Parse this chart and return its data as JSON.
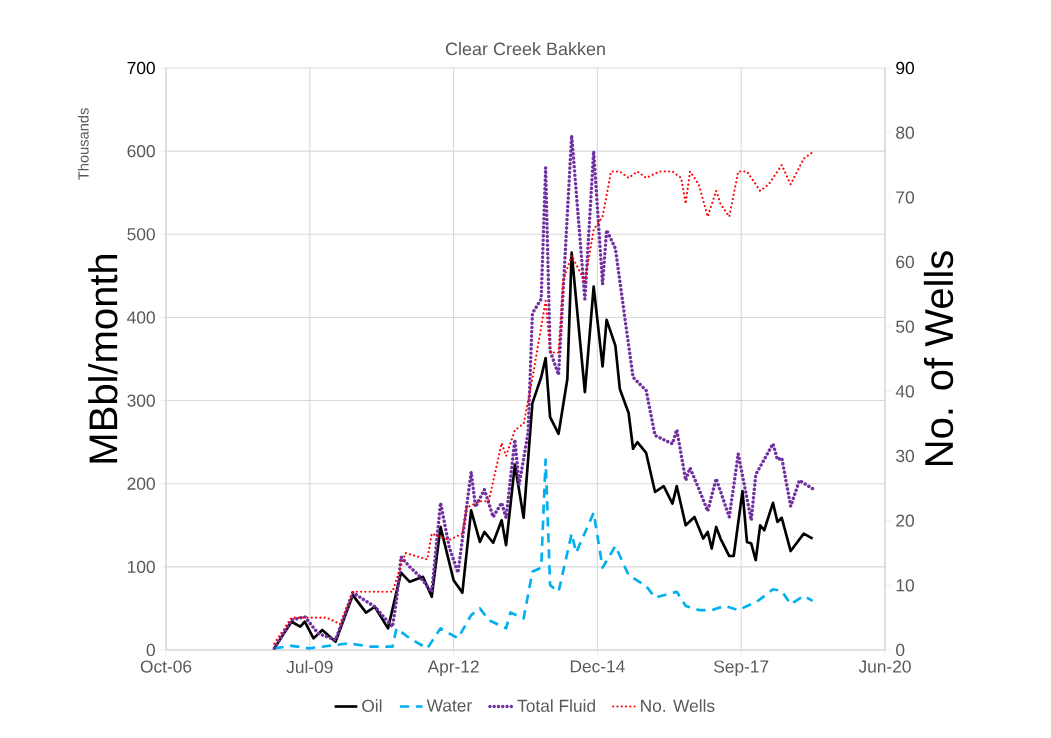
{
  "chart_data": {
    "type": "line",
    "title": "Clear Creek Bakken",
    "ylabel": "MBbl/month",
    "y2label": "No. of Wells",
    "annotations": [
      "Thousands"
    ],
    "xlim": [
      "2006-10-10",
      "2020-06-18"
    ],
    "xticks": [
      {
        "value": "2006-10-10",
        "label": "Oct-06"
      },
      {
        "value": "2009-07-06",
        "label": "Jul-09"
      },
      {
        "value": "2012-04-01",
        "label": "Apr-12"
      },
      {
        "value": "2014-12-27",
        "label": "Dec-14"
      },
      {
        "value": "2017-09-22",
        "label": "Sep-17"
      },
      {
        "value": "2020-06-18",
        "label": "Jun-20"
      }
    ],
    "ylim": [
      0,
      700
    ],
    "yticks": [
      0,
      100,
      200,
      300,
      400,
      500,
      600,
      700
    ],
    "y2lim": [
      0,
      90
    ],
    "y2ticks": [
      0,
      10,
      20,
      30,
      40,
      50,
      60,
      70,
      80,
      90
    ],
    "grid": true,
    "legend": "bottom",
    "marker": "none",
    "series": [
      {
        "name": "Oil",
        "color": "#000000",
        "line_style": "solid",
        "x": [
          "2008-11",
          "2009-03",
          "2009-05",
          "2009-06",
          "2009-08",
          "2009-10",
          "2010-01",
          "2010-05",
          "2010-08",
          "2010-10",
          "2011-01",
          "2011-04",
          "2011-06",
          "2011-09",
          "2011-11",
          "2012-01",
          "2012-04",
          "2012-06",
          "2012-08",
          "2012-10",
          "2012-11",
          "2013-01",
          "2013-03",
          "2013-04",
          "2013-06",
          "2013-08",
          "2013-10",
          "2013-12",
          "2014-01",
          "2014-02",
          "2014-04",
          "2014-06",
          "2014-07",
          "2014-10",
          "2014-12",
          "2015-02",
          "2015-03",
          "2015-05",
          "2015-06",
          "2015-08",
          "2015-09",
          "2015-10",
          "2015-12",
          "2016-02",
          "2016-04",
          "2016-06",
          "2016-07",
          "2016-09",
          "2016-11",
          "2017-01",
          "2017-02",
          "2017-03",
          "2017-04",
          "2017-05",
          "2017-07",
          "2017-08",
          "2017-10",
          "2017-11",
          "2017-12",
          "2018-01",
          "2018-02",
          "2018-03",
          "2018-05",
          "2018-06",
          "2018-07",
          "2018-09",
          "2018-12",
          "2019-02"
        ],
        "values": [
          2,
          34,
          28,
          34,
          14,
          24,
          10,
          66,
          45,
          52,
          26,
          93,
          82,
          88,
          64,
          148,
          84,
          69,
          168,
          130,
          142,
          129,
          156,
          126,
          223,
          159,
          297,
          328,
          351,
          280,
          260,
          326,
          478,
          310,
          437,
          341,
          397,
          366,
          314,
          285,
          242,
          250,
          237,
          190,
          197,
          176,
          197,
          150,
          160,
          134,
          142,
          122,
          148,
          134,
          113,
          113,
          191,
          130,
          128,
          108,
          150,
          144,
          177,
          154,
          159,
          119,
          140,
          134
        ]
      },
      {
        "name": "Water",
        "color": "#00b0f0",
        "line_style": "dashed",
        "x": [
          "2008-11",
          "2009-03",
          "2009-07",
          "2010-04",
          "2010-09",
          "2011-02",
          "2011-03",
          "2011-06",
          "2011-10",
          "2012-01",
          "2012-05",
          "2012-08",
          "2012-10",
          "2012-12",
          "2013-04",
          "2013-05",
          "2013-08",
          "2013-10",
          "2013-12",
          "2014-01",
          "2014-02",
          "2014-04",
          "2014-07",
          "2014-08",
          "2014-12",
          "2015-02",
          "2015-05",
          "2015-08",
          "2015-12",
          "2016-02",
          "2016-07",
          "2016-09",
          "2016-12",
          "2017-03",
          "2017-06",
          "2017-09",
          "2017-12",
          "2018-01",
          "2018-05",
          "2018-07",
          "2018-09",
          "2018-12",
          "2019-02"
        ],
        "values": [
          2,
          5,
          2,
          8,
          4,
          4,
          26,
          14,
          2,
          26,
          14,
          42,
          50,
          36,
          26,
          45,
          38,
          94,
          99,
          229,
          78,
          70,
          140,
          117,
          165,
          99,
          125,
          90,
          77,
          63,
          70,
          53,
          48,
          48,
          53,
          48,
          55,
          57,
          73,
          71,
          55,
          65,
          59
        ]
      },
      {
        "name": "Total Fluid",
        "color": "#7030a0",
        "line_style": "dotted",
        "x": [
          "2008-11",
          "2009-03",
          "2009-06",
          "2009-09",
          "2010-01",
          "2010-05",
          "2010-10",
          "2011-02",
          "2011-03",
          "2011-04",
          "2011-06",
          "2011-08",
          "2011-11",
          "2012-01",
          "2012-03",
          "2012-05",
          "2012-08",
          "2012-09",
          "2012-11",
          "2013-01",
          "2013-03",
          "2013-04",
          "2013-06",
          "2013-07",
          "2013-09",
          "2013-10",
          "2013-12",
          "2014-01",
          "2014-02",
          "2014-04",
          "2014-07",
          "2014-10",
          "2014-12",
          "2015-02",
          "2015-03",
          "2015-05",
          "2015-09",
          "2015-12",
          "2016-02",
          "2016-06",
          "2016-07",
          "2016-09",
          "2016-10",
          "2016-12",
          "2017-02",
          "2017-04",
          "2017-07",
          "2017-09",
          "2017-12",
          "2018-01",
          "2018-05",
          "2018-06",
          "2018-07",
          "2018-09",
          "2018-11",
          "2019-02"
        ],
        "values": [
          2,
          36,
          40,
          20,
          12,
          69,
          52,
          28,
          60,
          112,
          100,
          90,
          70,
          177,
          124,
          93,
          214,
          172,
          193,
          160,
          177,
          159,
          253,
          199,
          261,
          405,
          422,
          580,
          360,
          331,
          619,
          422,
          600,
          440,
          505,
          483,
          328,
          312,
          258,
          248,
          265,
          204,
          219,
          194,
          167,
          206,
          160,
          236,
          156,
          211,
          248,
          229,
          231,
          173,
          204,
          194
        ]
      },
      {
        "name": "No. Wells",
        "color": "#ff0000",
        "line_style": "dotted",
        "axis": "y2",
        "x": [
          "2008-11",
          "2009-03",
          "2009-06",
          "2009-11",
          "2010-02",
          "2010-05",
          "2011-02",
          "2011-04",
          "2011-05",
          "2011-10",
          "2011-11",
          "2012-03",
          "2012-06",
          "2012-07",
          "2012-10",
          "2012-12",
          "2013-03",
          "2013-04",
          "2013-06",
          "2013-08",
          "2013-10",
          "2014-01",
          "2014-02",
          "2014-04",
          "2014-05",
          "2014-07",
          "2014-10",
          "2014-12",
          "2015-02",
          "2015-04",
          "2015-06",
          "2015-08",
          "2015-10",
          "2015-12",
          "2016-03",
          "2016-06",
          "2016-08",
          "2016-09",
          "2016-10",
          "2016-12",
          "2017-02",
          "2017-04",
          "2017-05",
          "2017-07",
          "2017-09",
          "2017-11",
          "2018-02",
          "2018-04",
          "2018-07",
          "2018-09",
          "2018-12",
          "2019-02"
        ],
        "values": [
          1,
          5,
          5,
          5,
          4,
          9,
          9,
          13,
          15,
          14,
          18,
          17,
          18,
          22,
          23,
          23,
          32,
          30,
          34,
          35,
          42,
          54,
          46,
          46,
          57,
          61,
          57,
          65,
          67,
          74,
          74,
          73,
          74,
          73,
          74,
          74,
          73,
          69,
          74,
          72,
          67,
          71,
          69,
          67,
          74,
          74,
          71,
          72,
          75,
          72,
          76,
          77
        ]
      }
    ]
  }
}
